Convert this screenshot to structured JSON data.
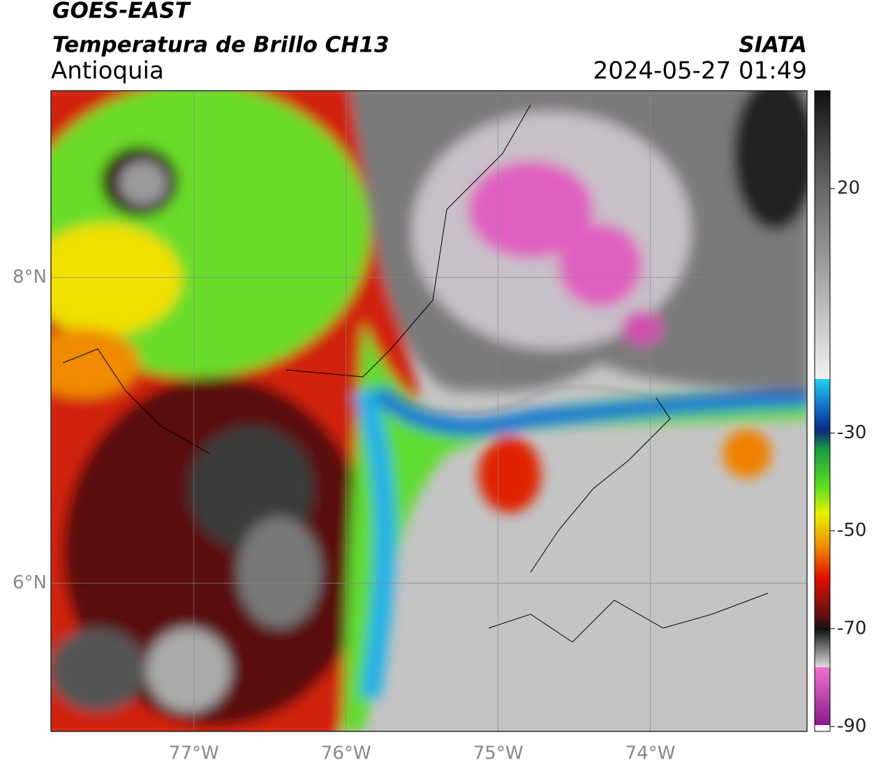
{
  "header": {
    "title": "GOES-EAST",
    "subtitle": "Temperatura de Brillo CH13",
    "region": "Antioquia",
    "source": "SIATA",
    "timestamp": "2024-05-27 01:49"
  },
  "map": {
    "xlim": [
      -77.94,
      -72.97
    ],
    "ylim": [
      5.03,
      9.22
    ],
    "xticks": [
      {
        "value": -77,
        "label": "77°W"
      },
      {
        "value": -76,
        "label": "76°W"
      },
      {
        "value": -75,
        "label": "75°W"
      },
      {
        "value": -74,
        "label": "74°W"
      }
    ],
    "yticks": [
      {
        "value": 8,
        "label": "8°N"
      },
      {
        "value": 6,
        "label": "6°N"
      }
    ],
    "grid": true
  },
  "colorbar": {
    "lim": [
      -91,
      40
    ],
    "ticks": [
      20,
      -30,
      -50,
      -70,
      -90
    ]
  }
}
